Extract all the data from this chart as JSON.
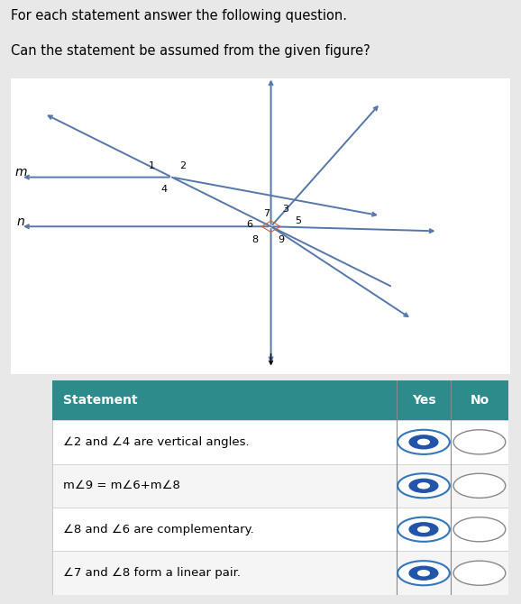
{
  "title_line1": "For each statement answer the following question.",
  "title_line2": "Can the statement be assumed from the given figure?",
  "bg_color": "#e8e8e8",
  "fig_area_color": "#e8e8e8",
  "table_header_color": "#2e8b8b",
  "statements": [
    "−2 and −4 are vertical angles.",
    "m−9 = m−6+m−8",
    "−8 and −6 are complementary.",
    "−7 and −8 form a linear pair."
  ],
  "yes_selected": [
    true,
    true,
    true,
    true
  ],
  "no_selected": [
    false,
    false,
    false,
    false
  ],
  "line_color": "#5577aa",
  "p1": [
    0.33,
    0.66
  ],
  "p2": [
    0.52,
    0.5
  ]
}
